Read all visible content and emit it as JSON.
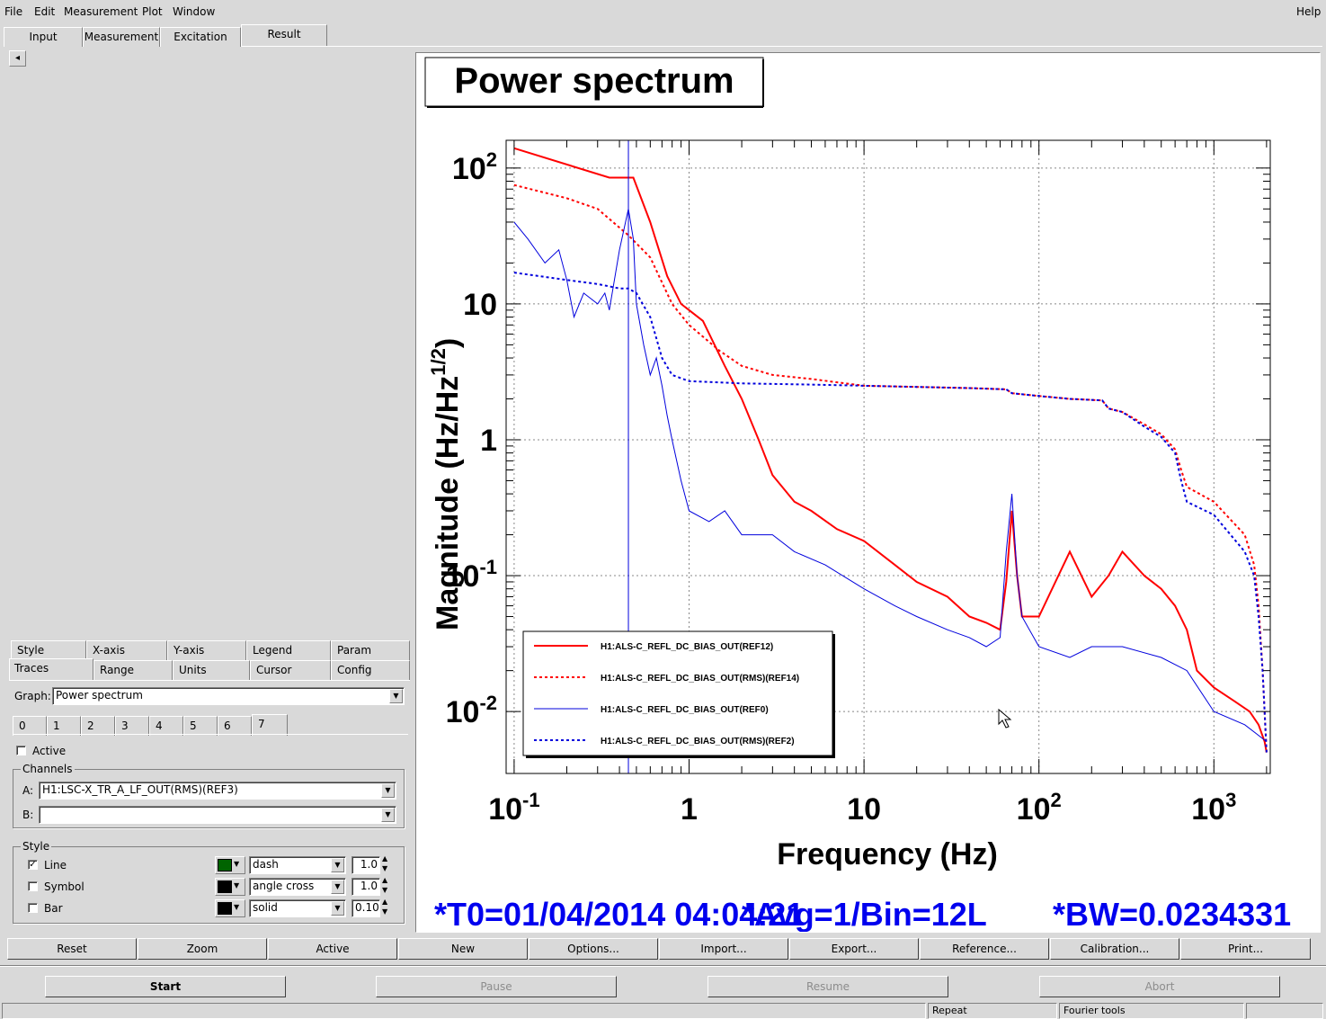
{
  "menubar": {
    "items": [
      "File",
      "Edit",
      "Measurement",
      "Plot",
      "Window"
    ],
    "underline": [
      "F",
      "E",
      "M",
      "P",
      "W"
    ],
    "help": "Help"
  },
  "main_tabs": [
    "Input",
    "Measurement",
    "Excitation",
    "Result"
  ],
  "selected_main_tab": "Result",
  "scroll_left": "◂",
  "options_tabs_row1": [
    "Style",
    "X-axis",
    "Y-axis",
    "Legend",
    "Param"
  ],
  "options_tabs_row2": [
    "Traces",
    "Range",
    "Units",
    "Cursor",
    "Config"
  ],
  "graph": {
    "label": "Graph:",
    "value": "Power spectrum"
  },
  "trace_tabs": [
    "0",
    "1",
    "2",
    "3",
    "4",
    "5",
    "6",
    "7"
  ],
  "active": {
    "label": "Active",
    "checked": false
  },
  "channels": {
    "title": "Channels",
    "a_label": "A:",
    "a_value": "H1:LSC-X_TR_A_LF_OUT(RMS)(REF3)",
    "b_label": "B:",
    "b_value": ""
  },
  "style": {
    "title": "Style",
    "line": {
      "label": "Line",
      "checked": true,
      "color": "#006400",
      "pattern": "dash",
      "width": "1.0"
    },
    "symbol": {
      "label": "Symbol",
      "checked": false,
      "color": "#000000",
      "pattern": "angle cross",
      "width": "1.0"
    },
    "bar": {
      "label": "Bar",
      "checked": false,
      "color": "#000000",
      "pattern": "solid",
      "width": "0.10"
    }
  },
  "plot": {
    "title": "Power spectrum",
    "xlabel": "Frequency (Hz)",
    "ylabel": "Magnitude (Hz/Hz",
    "ylabel_sup": "1/2",
    "ylabel_close": ")",
    "x_ticks": [
      {
        "base": "10",
        "exp": "-1",
        "val": 0.1
      },
      {
        "base": "1",
        "exp": "",
        "val": 1
      },
      {
        "base": "10",
        "exp": "",
        "val": 10
      },
      {
        "base": "10",
        "exp": "2",
        "val": 100
      },
      {
        "base": "10",
        "exp": "3",
        "val": 1000
      }
    ],
    "y_ticks": [
      {
        "base": "10",
        "exp": "2",
        "val": 100
      },
      {
        "base": "10",
        "exp": "",
        "val": 10
      },
      {
        "base": "1",
        "exp": "",
        "val": 1
      },
      {
        "base": "10",
        "exp": "-1",
        "val": 0.1
      },
      {
        "base": "10",
        "exp": "-2",
        "val": 0.01
      }
    ],
    "info_t0": "*T0=01/04/2014 04:04:21",
    "info_avg": "*Avg=1/Bin=12L",
    "info_bw": "*BW=0.0234331",
    "info_color": "#0000ee"
  },
  "chart_data": {
    "type": "line",
    "title": "Power spectrum",
    "xlabel": "Frequency (Hz)",
    "ylabel": "Magnitude (Hz/Hz^1/2)",
    "xscale": "log",
    "yscale": "log",
    "xlim": [
      0.09,
      2100
    ],
    "ylim": [
      0.0035,
      160
    ],
    "grid": true,
    "legend_position": "bottom-left",
    "cursor_x": 0.45,
    "series": [
      {
        "name": "H1:ALS-C_REFL_DC_BIAS_OUT(REF12)",
        "color": "#ff0000",
        "dash": "solid",
        "width": 2,
        "x": [
          0.1,
          0.35,
          0.48,
          0.6,
          0.75,
          0.9,
          1.2,
          1.6,
          2.0,
          2.5,
          3.0,
          4.0,
          5.0,
          7.0,
          10,
          15,
          20,
          30,
          40,
          50,
          60,
          65,
          70,
          75,
          80,
          100,
          150,
          200,
          250,
          300,
          400,
          500,
          600,
          700,
          800,
          1000,
          1300,
          1600,
          1800,
          1950,
          2000
        ],
        "y": [
          140,
          85,
          85,
          40,
          16,
          10,
          7.5,
          3.5,
          2.0,
          1.0,
          0.55,
          0.35,
          0.3,
          0.22,
          0.18,
          0.12,
          0.09,
          0.07,
          0.05,
          0.045,
          0.04,
          0.09,
          0.3,
          0.1,
          0.05,
          0.05,
          0.15,
          0.07,
          0.1,
          0.15,
          0.1,
          0.08,
          0.06,
          0.04,
          0.02,
          0.015,
          0.012,
          0.01,
          0.008,
          0.006,
          0.005
        ]
      },
      {
        "name": "H1:ALS-C_REFL_DC_BIAS_OUT(RMS)(REF14)",
        "color": "#ff0000",
        "dash": "dot",
        "width": 2,
        "x": [
          0.1,
          0.2,
          0.3,
          0.45,
          0.6,
          0.8,
          1.0,
          1.5,
          2.0,
          3.0,
          5.0,
          10,
          20,
          40,
          65,
          70,
          100,
          150,
          230,
          250,
          300,
          400,
          500,
          600,
          650,
          700,
          1000,
          1500,
          1700,
          1800,
          1900,
          2000
        ],
        "y": [
          75,
          60,
          50,
          32,
          22,
          10,
          7.0,
          4.5,
          3.5,
          3.0,
          2.8,
          2.5,
          2.45,
          2.4,
          2.35,
          2.2,
          2.1,
          2.0,
          1.95,
          1.7,
          1.6,
          1.3,
          1.1,
          0.85,
          0.6,
          0.45,
          0.35,
          0.2,
          0.12,
          0.06,
          0.02,
          0.005
        ]
      },
      {
        "name": "H1:ALS-C_REFL_DC_BIAS_OUT(REF0)",
        "color": "#0000dd",
        "dash": "solid",
        "width": 1,
        "x": [
          0.1,
          0.12,
          0.15,
          0.18,
          0.2,
          0.22,
          0.25,
          0.3,
          0.33,
          0.35,
          0.4,
          0.45,
          0.48,
          0.5,
          0.55,
          0.6,
          0.65,
          0.7,
          0.75,
          0.8,
          0.9,
          1.0,
          1.3,
          1.6,
          2.0,
          2.5,
          3.0,
          4.0,
          6.0,
          10,
          15,
          20,
          30,
          40,
          50,
          60,
          65,
          70,
          75,
          80,
          100,
          150,
          200,
          300,
          500,
          700,
          1000,
          1500,
          2000
        ],
        "y": [
          40,
          30,
          20,
          25,
          15,
          8,
          12,
          10,
          12,
          9,
          25,
          50,
          30,
          10,
          5,
          3,
          4,
          2.5,
          1.5,
          1.0,
          0.5,
          0.3,
          0.25,
          0.3,
          0.2,
          0.2,
          0.2,
          0.15,
          0.12,
          0.08,
          0.06,
          0.05,
          0.04,
          0.035,
          0.03,
          0.035,
          0.15,
          0.4,
          0.1,
          0.05,
          0.03,
          0.025,
          0.03,
          0.03,
          0.025,
          0.02,
          0.01,
          0.008,
          0.006
        ]
      },
      {
        "name": "H1:ALS-C_REFL_DC_BIAS_OUT(RMS)(REF2)",
        "color": "#0000dd",
        "dash": "dot",
        "width": 2,
        "x": [
          0.1,
          0.2,
          0.3,
          0.4,
          0.45,
          0.5,
          0.6,
          0.7,
          0.8,
          1.0,
          2.0,
          5.0,
          10,
          20,
          40,
          65,
          70,
          100,
          150,
          230,
          250,
          300,
          400,
          500,
          600,
          650,
          700,
          1000,
          1500,
          1700,
          1800,
          1900,
          2000
        ],
        "y": [
          17,
          15,
          14,
          13,
          13,
          12,
          8,
          4,
          3,
          2.7,
          2.6,
          2.55,
          2.5,
          2.45,
          2.4,
          2.35,
          2.2,
          2.1,
          2.0,
          1.95,
          1.7,
          1.6,
          1.25,
          1.05,
          0.8,
          0.5,
          0.35,
          0.28,
          0.15,
          0.1,
          0.05,
          0.02,
          0.005
        ]
      }
    ]
  },
  "bottom_buttons": [
    "Reset",
    "Zoom",
    "Active",
    "New",
    "Options...",
    "Import...",
    "Export...",
    "Reference...",
    "Calibration...",
    "Print..."
  ],
  "control_buttons": [
    "Start",
    "Pause",
    "Resume",
    "Abort"
  ],
  "status": {
    "repeat": "Repeat",
    "fourier": "Fourier tools"
  }
}
